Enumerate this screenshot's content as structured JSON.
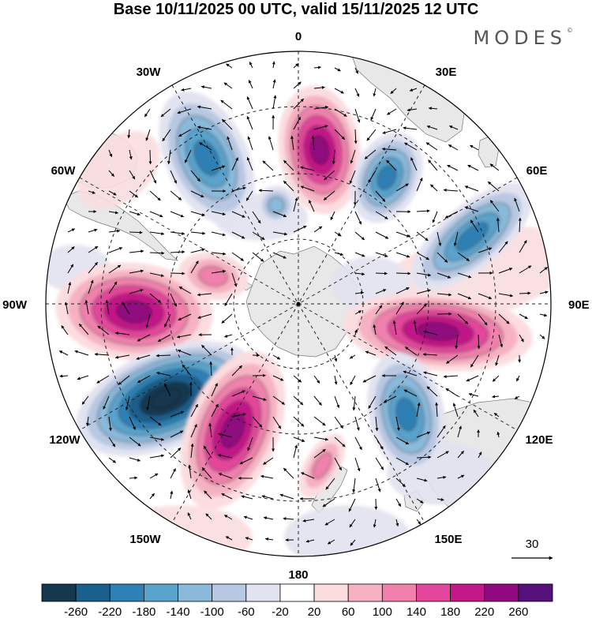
{
  "title": "Base 10/11/2025 00 UTC, valid 15/11/2025 12 UTC",
  "brand": "MODES",
  "brand_mark": "©",
  "projection": "south-polar-stereographic",
  "longitude_labels": {
    "top": "0",
    "top_right": "30E",
    "upper_right": "60E",
    "right": "90E",
    "lower_right": "120E",
    "bottom_right": "150E",
    "bottom": "180",
    "bottom_left": "150W",
    "lower_left": "120W",
    "left": "90W",
    "upper_left": "60W",
    "top_left": "30W"
  },
  "vector_reference": {
    "value": "30"
  },
  "colorbar": {
    "ticks": [
      "-260",
      "-220",
      "-180",
      "-140",
      "-100",
      "-60",
      "-20",
      "20",
      "60",
      "100",
      "140",
      "180",
      "220",
      "260"
    ],
    "colors": [
      "#16384f",
      "#1b5f8c",
      "#2f80b4",
      "#5aa3cc",
      "#8ab9da",
      "#b8c8e2",
      "#e2e3f0",
      "#ffffff",
      "#fbdde0",
      "#f6b2c2",
      "#f081ad",
      "#e2479b",
      "#c21888",
      "#8f0a7f",
      "#551079"
    ]
  },
  "anomaly_centers": [
    {
      "sign": "positive",
      "level": 5
    },
    {
      "sign": "negative",
      "level": 4
    },
    {
      "sign": "negative",
      "level": 4
    },
    {
      "sign": "negative",
      "level": 4
    },
    {
      "sign": "positive",
      "level": 5
    },
    {
      "sign": "positive",
      "level": 5
    },
    {
      "sign": "negative",
      "level": 7
    },
    {
      "sign": "positive",
      "level": 5
    },
    {
      "sign": "negative",
      "level": 4
    },
    {
      "sign": "positive",
      "level": 2
    },
    {
      "sign": "negative",
      "level": 2
    },
    {
      "sign": "positive",
      "level": 2
    }
  ]
}
